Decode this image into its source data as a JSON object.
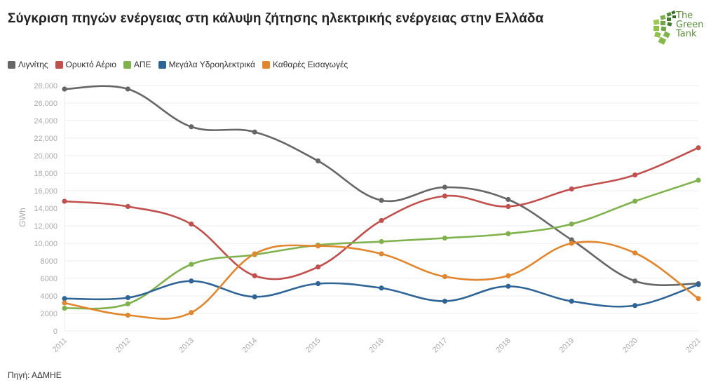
{
  "header": {
    "title": "Σύγκριση πηγών ενέργειας στη κάλυψη ζήτησης ηλεκτρικής ενέργειας στην Ελλάδα",
    "logo_lines": [
      "The",
      "Green",
      "Tank"
    ]
  },
  "footer": {
    "source": "Πηγή: ΑΔΜΗΕ"
  },
  "colors": {
    "lignite": "#666666",
    "gas": "#c0504d",
    "res": "#7fb24c",
    "hydro": "#2f6496",
    "imports": "#e0862e",
    "logo_green": "#5a8c3a"
  },
  "chart_data": {
    "type": "line",
    "title": "Σύγκριση πηγών ενέργειας στη κάλυψη ζήτησης ηλεκτρικής ενέργειας στην Ελλάδα",
    "xlabel": "",
    "ylabel": "GWh",
    "ylim": [
      0,
      28000
    ],
    "yticks": [
      0,
      2000,
      4000,
      6000,
      8000,
      10000,
      12000,
      14000,
      16000,
      18000,
      20000,
      22000,
      24000,
      26000,
      28000
    ],
    "ytick_labels": [
      "0",
      "2000",
      "4000",
      "6000",
      "8000",
      "10,000",
      "12,000",
      "14,000",
      "16,000",
      "18,000",
      "20,000",
      "22,000",
      "24,000",
      "26,000",
      "28,000"
    ],
    "grid": true,
    "legend_position": "top-left",
    "x": [
      "2011",
      "2012",
      "2013",
      "2014",
      "2015",
      "2016",
      "2017",
      "2018",
      "2019",
      "2020",
      "2021"
    ],
    "series": [
      {
        "name": "Λιγνίτης",
        "color": "#666666",
        "values": [
          27600,
          27600,
          23300,
          22700,
          19400,
          14900,
          16400,
          15000,
          10400,
          5700,
          5400
        ]
      },
      {
        "name": "Ορυκτό Αέριο",
        "color": "#c0504d",
        "values": [
          14800,
          14200,
          12200,
          6300,
          7300,
          12600,
          15400,
          14200,
          16200,
          17800,
          20900
        ]
      },
      {
        "name": "ΑΠΕ",
        "color": "#7fb24c",
        "values": [
          2600,
          3100,
          7600,
          8700,
          9800,
          10200,
          10600,
          11100,
          12200,
          14800,
          17200
        ]
      },
      {
        "name": "Μεγάλα Υδροηλεκτρικά",
        "color": "#2f6496",
        "values": [
          3700,
          3800,
          5700,
          3900,
          5400,
          4900,
          3400,
          5100,
          3400,
          2900,
          5300
        ]
      },
      {
        "name": "Καθαρές Εισαγωγές",
        "color": "#e0862e",
        "values": [
          3200,
          1800,
          2100,
          8800,
          9700,
          8800,
          6200,
          6300,
          10000,
          8900,
          3700
        ]
      }
    ]
  }
}
